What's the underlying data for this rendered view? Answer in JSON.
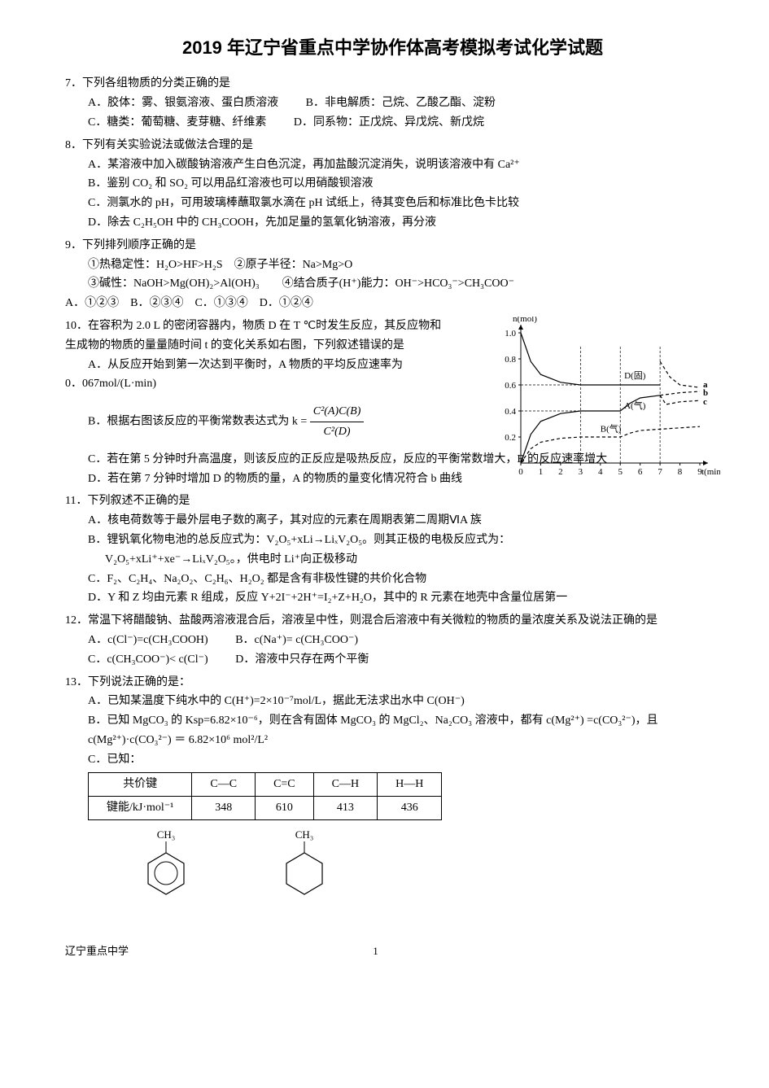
{
  "title": "2019 年辽宁省重点中学协作体高考模拟考试化学试题",
  "q7": {
    "stem": "7．下列各组物质的分类正确的是",
    "A": "A．胶体：雾、银氨溶液、蛋白质溶液",
    "B": "B．非电解质：己烷、乙酸乙酯、淀粉",
    "C": "C．糖类：葡萄糖、麦芽糖、纤维素",
    "D": "D．同系物：正戊烷、异戊烷、新戊烷"
  },
  "q8": {
    "stem": "8．下列有关实验说法或做法合理的是",
    "A": "A．某溶液中加入碳酸钠溶液产生白色沉淀，再加盐酸沉淀消失，说明该溶液中有 Ca²⁺",
    "B": "B．鉴别 CO₂ 和 SO₂ 可以用品红溶液也可以用硝酸钡溶液",
    "C": "C．测氯水的 pH，可用玻璃棒蘸取氯水滴在 pH 试纸上，待其变色后和标准比色卡比较",
    "D": "D．除去 C₂H₅OH 中的 CH₃COOH，先加足量的氢氧化钠溶液，再分液"
  },
  "q9": {
    "stem": "9．下列排列顺序正确的是",
    "l1": "①热稳定性：H₂O>HF>H₂S　②原子半径：Na>Mg>O",
    "l2": "③碱性：NaOH>Mg(OH)₂>Al(OH)₃　　④结合质子(H⁺)能力：OH⁻>HCO₃⁻>CH₃COO⁻",
    "opts": "A．①②③　B．②③④　C．①③④　D．①②④"
  },
  "q10": {
    "stem": "10．在容积为 2.0 L 的密闭容器内，物质 D 在 T ℃时发生反应，其反应物和生成物的物质的量量随时间 t 的变化关系如右图，下列叙述错误的是",
    "A_pre": "A．从反应开始到第一次达到平衡时，A 物质的平均反应速率为",
    "A_val": "0．067mol/(L·min)",
    "B_pre": "B．根据右图该反应的平衡常数表达式为 k =",
    "frac_num": "C²(A)C(B)",
    "frac_den": "C²(D)",
    "C": "C．若在第 5 分钟时升高温度，则该反应的正反应是吸热反应，反应的平衡常数增大，B 的反应速率增大",
    "D": "D．若在第 7 分钟时增加 D 的物质的量，A 的物质的量变化情况符合 b 曲线"
  },
  "q11": {
    "stem": "11．下列叙述不正确的是",
    "A": "A．核电荷数等于最外层电子数的离子，其对应的元素在周期表第二周期ⅥA 族",
    "B1": "B．锂钒氧化物电池的总反应式为：V₂O₅+xLi→LiₓV₂O₅。则其正极的电极反应式为：",
    "B2": "V₂O₅+xLi⁺+xe⁻→LiₓV₂O₅。，供电时 Li⁺向正极移动",
    "C": "C．F₂、C₂H₄、Na₂O₂、C₂H₆、H₂O₂ 都是含有非极性键的共价化合物",
    "D": "D．Y 和 Z 均由元素 R 组成，反应 Y+2I⁻+2H⁺=I₂+Z+H₂O，其中的 R 元素在地壳中含量位居第一"
  },
  "q12": {
    "stem": "12．常温下将醋酸钠、盐酸两溶液混合后，溶液呈中性，则混合后溶液中有关微粒的物质的量浓度关系及说法正确的是",
    "A": "A．c(Cl⁻)=c(CH₃COOH)",
    "B": "B．c(Na⁺)= c(CH₃COO⁻)",
    "C": "C．c(CH₃COO⁻)< c(Cl⁻)",
    "D": "D．溶液中只存在两个平衡"
  },
  "q13": {
    "stem": "13．下列说法正确的是：",
    "A": "A．已知某温度下纯水中的 C(H⁺)=2×10⁻⁷mol/L，据此无法求出水中 C(OH⁻)",
    "B": "B．已知 MgCO₃ 的 Ksp=6.82×10⁻⁶，则在含有固体 MgCO₃ 的 MgCl₂、Na₂CO₃ 溶液中，都有 c(Mg²⁺) =c(CO₃²⁻)，且 c(Mg²⁺)·c(CO₃²⁻) ＝ 6.82×10⁶ mol²/L²",
    "C_label": "C．已知：",
    "table": {
      "headers": [
        "共价键",
        "C—C",
        "C=C",
        "C—H",
        "H—H"
      ],
      "row": [
        "键能/kJ·mol⁻¹",
        "348",
        "610",
        "413",
        "436"
      ]
    }
  },
  "chart": {
    "y_label": "n(mol)",
    "x_label": "t(min)",
    "y_ticks": [
      "0.2",
      "0.4",
      "0.6",
      "0.8",
      "1.0"
    ],
    "x_ticks": [
      "0",
      "1",
      "2",
      "3",
      "4",
      "5",
      "6",
      "7",
      "8",
      "9"
    ],
    "curve_labels": {
      "D": "D(固)",
      "A": "A(气)",
      "B": "B(气)",
      "a": "a",
      "b": "b",
      "c": "c"
    },
    "D_curve": [
      [
        0,
        1.0
      ],
      [
        0.5,
        0.78
      ],
      [
        1,
        0.68
      ],
      [
        2,
        0.62
      ],
      [
        3,
        0.6
      ],
      [
        4,
        0.6
      ],
      [
        5,
        0.6
      ],
      [
        6,
        0.6
      ],
      [
        7,
        0.6
      ]
    ],
    "D_branch_a": [
      [
        7,
        0.78
      ],
      [
        7.5,
        0.66
      ],
      [
        8,
        0.6
      ],
      [
        9,
        0.58
      ]
    ],
    "A_curve": [
      [
        0,
        0
      ],
      [
        0.5,
        0.22
      ],
      [
        1,
        0.32
      ],
      [
        2,
        0.38
      ],
      [
        3,
        0.4
      ],
      [
        4,
        0.4
      ],
      [
        5,
        0.4
      ],
      [
        5.5,
        0.46
      ],
      [
        6,
        0.5
      ],
      [
        7,
        0.52
      ]
    ],
    "A_branch_b": [
      [
        7,
        0.52
      ],
      [
        8,
        0.54
      ],
      [
        9,
        0.55
      ]
    ],
    "A_branch_c": [
      [
        7,
        0.52
      ],
      [
        7.3,
        0.45
      ],
      [
        8,
        0.47
      ],
      [
        9,
        0.48
      ]
    ],
    "B_curve": [
      [
        0,
        0
      ],
      [
        0.5,
        0.11
      ],
      [
        1,
        0.16
      ],
      [
        2,
        0.19
      ],
      [
        3,
        0.2
      ],
      [
        4,
        0.2
      ],
      [
        5,
        0.2
      ],
      [
        5.5,
        0.23
      ],
      [
        6,
        0.25
      ],
      [
        7,
        0.26
      ],
      [
        8,
        0.27
      ],
      [
        9,
        0.28
      ]
    ],
    "colors": {
      "axis": "#000000",
      "text": "#000000"
    },
    "fontsize": 11
  },
  "benzene": {
    "label_left": "CH₃",
    "label_right": "CH₃"
  },
  "footer": {
    "left": "辽宁重点中学",
    "page": "1"
  }
}
